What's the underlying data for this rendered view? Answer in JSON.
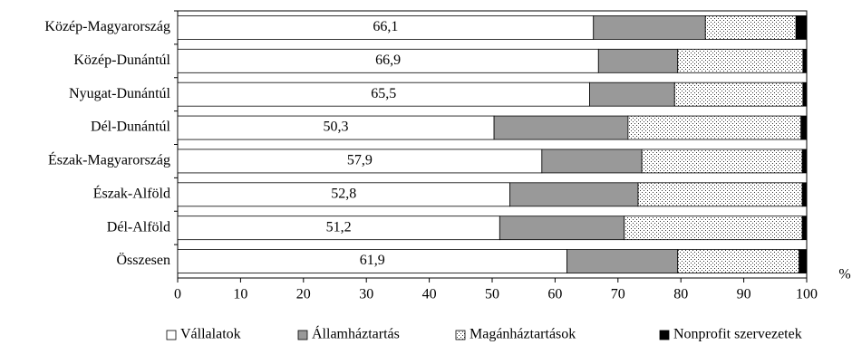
{
  "chart_data": {
    "type": "stacked-bar-horizontal",
    "categories": [
      "Közép-Magyarország",
      "Közép-Dunántúl",
      "Nyugat-Dunántúl",
      "Dél-Dunántúl",
      "Észak-Magyarország",
      "Észak-Alföld",
      "Dél-Alföld",
      "Összesen"
    ],
    "series": [
      {
        "name": "Vállalatok",
        "color": "#ffffff",
        "values": [
          66.1,
          66.9,
          65.5,
          50.3,
          57.9,
          52.8,
          51.2,
          61.9
        ],
        "value_labels": [
          "66,1",
          "66,9",
          "65,5",
          "50,3",
          "57,9",
          "52,8",
          "51,2",
          "61,9"
        ]
      },
      {
        "name": "Államháztartás",
        "color": "#999999",
        "values": [
          17.8,
          12.6,
          13.5,
          21.3,
          15.9,
          20.4,
          19.8,
          17.6
        ]
      },
      {
        "name": "Magánháztartások",
        "color": "#ffffff",
        "pattern": "dots",
        "values": [
          14.4,
          19.9,
          20.4,
          27.5,
          25.5,
          26.1,
          28.3,
          19.3
        ]
      },
      {
        "name": "Nonprofit szervezetek",
        "color": "#000000",
        "values": [
          1.7,
          0.6,
          0.6,
          0.9,
          0.7,
          0.7,
          0.7,
          1.2
        ]
      }
    ],
    "xlabel": "%",
    "xlim": [
      0,
      100
    ],
    "xticks": [
      0,
      10,
      20,
      30,
      40,
      50,
      60,
      70,
      80,
      90,
      100
    ],
    "legend": "bottom"
  }
}
